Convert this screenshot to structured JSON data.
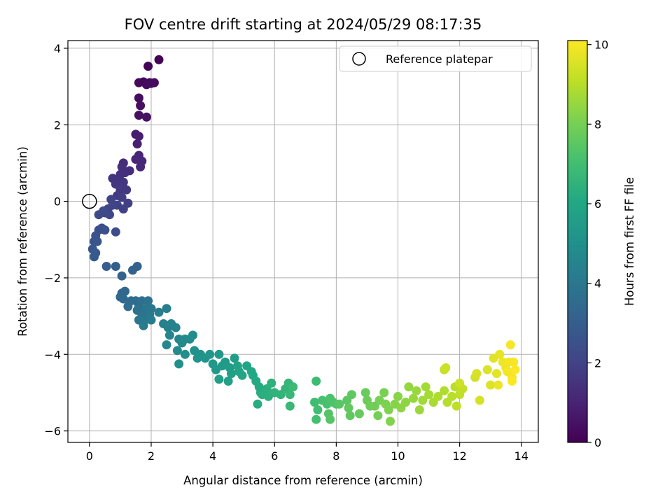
{
  "chart_data": {
    "type": "scatter",
    "title": "FOV centre drift starting at 2024/05/29 08:17:35",
    "xlabel": "Angular distance from reference (arcmin)",
    "ylabel": "Rotation from reference (arcmin)",
    "xlim": [
      -0.7,
      14.55
    ],
    "ylim": [
      -6.3,
      4.2
    ],
    "xticks": [
      0,
      2,
      4,
      6,
      8,
      10,
      12,
      14
    ],
    "xtick_labels": [
      "0",
      "2",
      "4",
      "6",
      "8",
      "10",
      "12",
      "14"
    ],
    "yticks": [
      -6,
      -4,
      -2,
      0,
      2,
      4
    ],
    "ytick_labels": [
      "−6",
      "−4",
      "−2",
      "0",
      "2",
      "4"
    ],
    "grid": true,
    "legend": {
      "location": "upper-right",
      "entries": [
        "Reference platepar"
      ]
    },
    "colorbar": {
      "label": "Hours from first FF file",
      "range": [
        0,
        10.1
      ],
      "ticks": [
        0,
        2,
        4,
        6,
        8,
        10
      ],
      "tick_labels": [
        "0",
        "2",
        "4",
        "6",
        "8",
        "10"
      ],
      "colormap": "viridis"
    },
    "reference_point": {
      "x": 0,
      "y": 0
    },
    "series": [
      {
        "points": [
          [
            2.25,
            3.7,
            0.05
          ],
          [
            1.9,
            3.53,
            0.1
          ],
          [
            1.95,
            3.1,
            0.15
          ],
          [
            1.6,
            3.1,
            0.2
          ],
          [
            1.75,
            3.12,
            0.22
          ],
          [
            2.0,
            3.08,
            0.25
          ],
          [
            2.1,
            3.1,
            0.28
          ],
          [
            1.85,
            3.05,
            0.3
          ],
          [
            1.6,
            2.7,
            0.35
          ],
          [
            1.65,
            2.5,
            0.4
          ],
          [
            1.6,
            2.25,
            0.45
          ],
          [
            1.85,
            2.2,
            0.5
          ],
          [
            1.5,
            1.75,
            0.8
          ],
          [
            1.6,
            1.7,
            0.85
          ],
          [
            1.55,
            1.5,
            0.9
          ],
          [
            1.6,
            1.2,
            1.0
          ],
          [
            1.5,
            1.1,
            1.05
          ],
          [
            1.7,
            1.05,
            1.1
          ],
          [
            1.65,
            0.9,
            1.15
          ],
          [
            1.3,
            0.8,
            1.25
          ],
          [
            1.1,
            1.0,
            1.3
          ],
          [
            1.05,
            0.9,
            1.35
          ],
          [
            1.15,
            0.75,
            1.4
          ],
          [
            1.0,
            0.7,
            1.45
          ],
          [
            0.95,
            0.55,
            1.5
          ],
          [
            0.75,
            0.6,
            1.55
          ],
          [
            0.85,
            0.45,
            1.6
          ],
          [
            1.1,
            0.5,
            1.6
          ],
          [
            1.2,
            0.3,
            1.65
          ],
          [
            1.0,
            0.3,
            1.7
          ],
          [
            0.9,
            0.15,
            1.75
          ],
          [
            1.05,
            0.1,
            1.8
          ],
          [
            1.25,
            -0.05,
            1.85
          ],
          [
            1.1,
            -0.2,
            1.9
          ],
          [
            0.9,
            -0.1,
            1.95
          ],
          [
            0.7,
            0.05,
            2.0
          ],
          [
            0.75,
            -0.1,
            2.05
          ],
          [
            0.6,
            -0.2,
            2.1
          ],
          [
            0.65,
            -0.35,
            2.15
          ],
          [
            0.5,
            -0.3,
            2.2
          ],
          [
            0.3,
            -0.35,
            2.25
          ],
          [
            0.45,
            -0.25,
            2.3
          ],
          [
            0.85,
            -0.8,
            2.35
          ],
          [
            0.4,
            -0.7,
            2.4
          ],
          [
            0.3,
            -0.75,
            2.45
          ],
          [
            0.5,
            -0.75,
            2.5
          ],
          [
            0.2,
            -0.9,
            2.55
          ],
          [
            0.15,
            -1.05,
            2.6
          ],
          [
            0.25,
            -1.05,
            2.65
          ],
          [
            0.1,
            -1.25,
            2.7
          ],
          [
            0.2,
            -1.35,
            2.8
          ],
          [
            0.15,
            -1.45,
            2.85
          ],
          [
            0.55,
            -1.7,
            2.95
          ],
          [
            0.85,
            -1.7,
            3.0
          ],
          [
            1.05,
            -1.95,
            3.1
          ],
          [
            1.4,
            -1.8,
            3.15
          ],
          [
            1.55,
            -1.7,
            3.2
          ],
          [
            1.05,
            -2.4,
            3.3
          ],
          [
            1.15,
            -2.35,
            3.35
          ],
          [
            1.0,
            -2.5,
            3.4
          ],
          [
            1.1,
            -2.55,
            3.45
          ],
          [
            1.35,
            -2.6,
            3.5
          ],
          [
            1.25,
            -2.75,
            3.55
          ],
          [
            1.5,
            -2.6,
            3.6
          ],
          [
            1.6,
            -2.75,
            3.65
          ],
          [
            1.7,
            -2.6,
            3.7
          ],
          [
            1.55,
            -2.85,
            3.75
          ],
          [
            1.9,
            -2.6,
            3.8
          ],
          [
            1.7,
            -2.95,
            3.85
          ],
          [
            1.85,
            -2.8,
            3.9
          ],
          [
            1.6,
            -3.1,
            3.95
          ],
          [
            2.0,
            -2.8,
            4.0
          ],
          [
            1.95,
            -2.95,
            4.05
          ],
          [
            1.8,
            -3.1,
            4.1
          ],
          [
            1.75,
            -3.25,
            4.15
          ],
          [
            2.0,
            -3.1,
            4.2
          ],
          [
            2.25,
            -2.9,
            4.25
          ],
          [
            2.5,
            -2.8,
            4.3
          ],
          [
            2.4,
            -3.2,
            4.35
          ],
          [
            2.55,
            -3.3,
            4.4
          ],
          [
            2.65,
            -3.2,
            4.45
          ],
          [
            2.8,
            -3.3,
            4.5
          ],
          [
            2.6,
            -3.5,
            4.55
          ],
          [
            2.5,
            -3.75,
            4.6
          ],
          [
            2.9,
            -3.6,
            4.65
          ],
          [
            3.0,
            -3.7,
            4.7
          ],
          [
            2.85,
            -3.9,
            4.75
          ],
          [
            3.1,
            -3.6,
            4.8
          ],
          [
            3.25,
            -3.6,
            4.85
          ],
          [
            3.35,
            -3.5,
            4.9
          ],
          [
            3.1,
            -4.0,
            4.95
          ],
          [
            2.9,
            -4.25,
            5.0
          ],
          [
            3.4,
            -3.9,
            5.05
          ],
          [
            3.6,
            -4.0,
            5.1
          ],
          [
            3.5,
            -4.1,
            5.15
          ],
          [
            3.75,
            -4.1,
            5.2
          ],
          [
            3.9,
            -4.0,
            5.25
          ],
          [
            4.0,
            -4.25,
            5.3
          ],
          [
            4.2,
            -4.0,
            5.35
          ],
          [
            4.1,
            -4.4,
            5.4
          ],
          [
            4.3,
            -4.3,
            5.45
          ],
          [
            4.4,
            -4.2,
            5.5
          ],
          [
            4.55,
            -4.35,
            5.55
          ],
          [
            4.7,
            -4.1,
            5.6
          ],
          [
            4.6,
            -4.5,
            5.65
          ],
          [
            4.2,
            -4.65,
            5.7
          ],
          [
            4.5,
            -4.7,
            5.75
          ],
          [
            4.8,
            -4.3,
            5.8
          ],
          [
            4.85,
            -4.45,
            5.85
          ],
          [
            4.95,
            -4.55,
            5.9
          ],
          [
            5.1,
            -4.3,
            5.95
          ],
          [
            5.25,
            -4.45,
            6.0
          ],
          [
            5.3,
            -4.55,
            6.05
          ],
          [
            5.4,
            -4.7,
            6.1
          ],
          [
            5.5,
            -4.85,
            6.15
          ],
          [
            5.55,
            -5.0,
            6.2
          ],
          [
            5.45,
            -5.3,
            6.25
          ],
          [
            5.6,
            -5.05,
            6.3
          ],
          [
            5.75,
            -4.9,
            6.35
          ],
          [
            5.8,
            -5.1,
            6.4
          ],
          [
            5.9,
            -4.75,
            6.45
          ],
          [
            6.0,
            -5.0,
            6.5
          ],
          [
            6.2,
            -5.05,
            6.55
          ],
          [
            6.35,
            -4.9,
            6.6
          ],
          [
            6.45,
            -4.75,
            6.65
          ],
          [
            6.5,
            -5.05,
            6.7
          ],
          [
            6.5,
            -5.35,
            6.75
          ],
          [
            6.6,
            -4.85,
            6.8
          ],
          [
            7.35,
            -4.7,
            6.9
          ],
          [
            7.3,
            -5.25,
            6.95
          ],
          [
            7.4,
            -5.45,
            7.0
          ],
          [
            7.35,
            -5.7,
            7.05
          ],
          [
            7.55,
            -5.2,
            7.1
          ],
          [
            7.7,
            -5.3,
            7.15
          ],
          [
            7.8,
            -5.15,
            7.2
          ],
          [
            7.9,
            -5.25,
            7.25
          ],
          [
            8.0,
            -5.3,
            7.3
          ],
          [
            7.75,
            -5.55,
            7.35
          ],
          [
            7.8,
            -5.7,
            7.4
          ],
          [
            8.1,
            -5.3,
            7.45
          ],
          [
            8.35,
            -5.2,
            7.5
          ],
          [
            8.45,
            -5.6,
            7.55
          ],
          [
            8.5,
            -5.05,
            7.6
          ],
          [
            8.4,
            -5.4,
            7.65
          ],
          [
            8.75,
            -5.55,
            7.7
          ],
          [
            8.95,
            -5.0,
            7.75
          ],
          [
            9.0,
            -5.2,
            7.8
          ],
          [
            9.1,
            -5.35,
            7.85
          ],
          [
            9.25,
            -5.35,
            7.9
          ],
          [
            9.35,
            -5.6,
            7.95
          ],
          [
            9.4,
            -5.2,
            8.0
          ],
          [
            9.55,
            -5.0,
            8.05
          ],
          [
            9.6,
            -5.3,
            8.1
          ],
          [
            9.7,
            -5.45,
            8.15
          ],
          [
            9.75,
            -5.75,
            8.2
          ],
          [
            9.9,
            -5.3,
            8.25
          ],
          [
            10.0,
            -5.1,
            8.3
          ],
          [
            10.1,
            -5.4,
            8.35
          ],
          [
            10.25,
            -5.25,
            8.4
          ],
          [
            10.35,
            -4.85,
            8.45
          ],
          [
            10.5,
            -5.15,
            8.5
          ],
          [
            10.6,
            -4.95,
            8.55
          ],
          [
            10.7,
            -5.45,
            8.6
          ],
          [
            10.8,
            -5.2,
            8.65
          ],
          [
            10.9,
            -4.85,
            8.7
          ],
          [
            11.0,
            -5.05,
            8.75
          ],
          [
            11.15,
            -5.25,
            8.8
          ],
          [
            11.3,
            -5.1,
            8.85
          ],
          [
            11.5,
            -4.95,
            8.9
          ],
          [
            11.6,
            -5.25,
            8.95
          ],
          [
            11.75,
            -5.1,
            9.0
          ],
          [
            11.85,
            -4.85,
            9.05
          ],
          [
            11.9,
            -5.35,
            9.1
          ],
          [
            12.0,
            -5.05,
            9.15
          ],
          [
            12.1,
            -4.9,
            9.2
          ],
          [
            11.5,
            -4.4,
            9.25
          ],
          [
            11.55,
            -4.35,
            9.3
          ],
          [
            12.0,
            -4.75,
            9.35
          ],
          [
            12.5,
            -4.6,
            9.4
          ],
          [
            12.65,
            -5.2,
            9.45
          ],
          [
            12.55,
            -4.5,
            9.5
          ],
          [
            12.9,
            -4.4,
            9.55
          ],
          [
            13.0,
            -4.8,
            9.6
          ],
          [
            13.1,
            -4.1,
            9.65
          ],
          [
            13.2,
            -4.5,
            9.7
          ],
          [
            13.3,
            -4.0,
            9.75
          ],
          [
            13.25,
            -4.8,
            9.8
          ],
          [
            13.4,
            -4.2,
            9.85
          ],
          [
            13.5,
            -4.35,
            9.9
          ],
          [
            13.55,
            -4.45,
            9.93
          ],
          [
            13.6,
            -4.2,
            9.95
          ],
          [
            13.7,
            -4.6,
            9.97
          ],
          [
            13.65,
            -3.75,
            10.0
          ],
          [
            13.75,
            -4.2,
            10.02
          ],
          [
            13.8,
            -4.4,
            10.05
          ],
          [
            13.7,
            -4.7,
            10.08
          ]
        ]
      }
    ]
  }
}
